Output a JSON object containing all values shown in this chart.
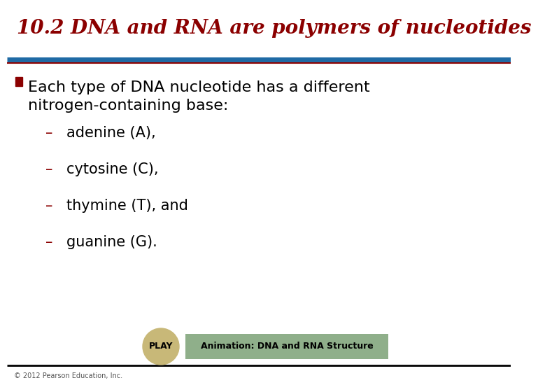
{
  "title": "10.2 DNA and RNA are polymers of nucleotides",
  "title_color": "#8B0000",
  "title_fontsize": 20,
  "separator_color": "#1F6AA5",
  "bullet_color": "#8B0000",
  "bullet_text_line1": "Each type of DNA nucleotide has a different",
  "bullet_text_line2": "nitrogen-containing base:",
  "bullet_fontsize": 16,
  "subbullets": [
    "adenine (A),",
    "cytosine (C),",
    "thymine (T), and",
    "guanine (G)."
  ],
  "subbullet_fontsize": 15,
  "subbullet_dash_color": "#8B0000",
  "subbullet_text_color": "#000000",
  "play_circle_color": "#C8B878",
  "play_text": "PLAY",
  "play_text_color": "#000000",
  "animation_box_color": "#8FAF8A",
  "animation_text": "Animation: DNA and RNA Structure",
  "animation_text_color": "#000000",
  "footer_text": "© 2012 Pearson Education, Inc.",
  "footer_fontsize": 7,
  "background_color": "#FFFFFF"
}
